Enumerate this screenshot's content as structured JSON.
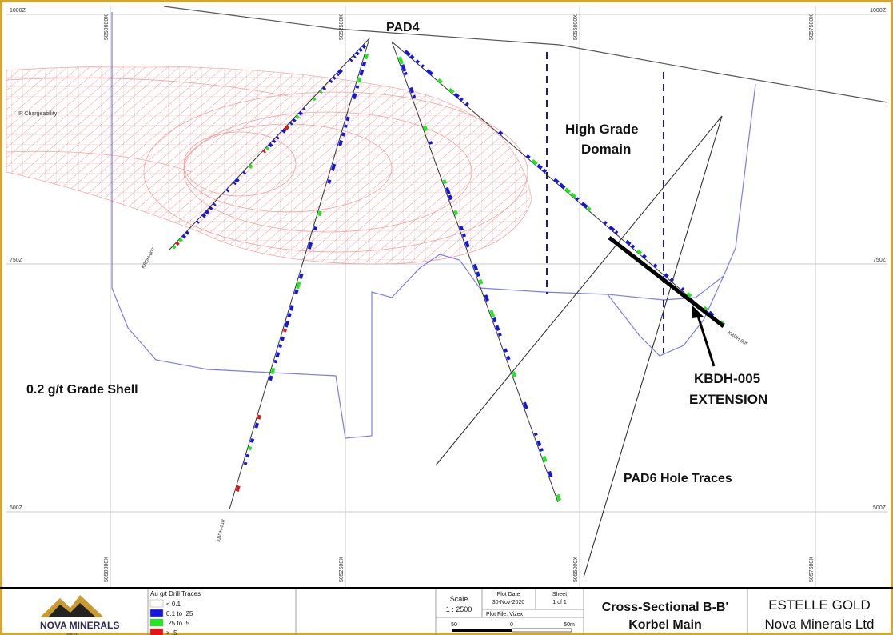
{
  "section": {
    "elevations": [
      "1000Z",
      "750Z",
      "500Z"
    ],
    "eastings": [
      "5050000X",
      "5052500X",
      "5055000X",
      "5057500X"
    ],
    "pad4": "PAD4",
    "ip_label": "IP Chargeability",
    "domain_label": [
      "High Grade",
      "Domain"
    ],
    "shell_label": "0.2 g/t Grade Shell",
    "extension_label": [
      "KBDH-005",
      "EXTENSION"
    ],
    "pad6_label": "PAD6 Hole Traces",
    "holes": [
      "KBDH-007",
      "KBDH-010",
      "KBDH-005"
    ]
  },
  "legend": {
    "title": "Au g/t Drill Traces",
    "items": [
      {
        "label": "< 0.1",
        "color": "#ffffff"
      },
      {
        "label": "0.1 to .25",
        "color": "#1414e6"
      },
      {
        "label": ".25 to .5",
        "color": "#22e622"
      },
      {
        "label": "> .5",
        "color": "#e61414"
      }
    ]
  },
  "title_block": {
    "logo": "NOVA MINERALS",
    "logo_sub": "LIMITED",
    "scale_label": "Scale",
    "scale": "1 : 2500",
    "plot_date_label": "Plot Date",
    "plot_date": "30-Nov-2020",
    "sheet_label": "Sheet",
    "sheet": "1 of 1",
    "plot_file": "Plot File: Vizex",
    "scalebar": [
      "50",
      "0",
      "50m"
    ],
    "title": [
      "Cross-Sectional B-B'",
      "Korbel Main"
    ],
    "company": [
      "ESTELLE GOLD",
      "Nova Minerals Ltd"
    ]
  }
}
